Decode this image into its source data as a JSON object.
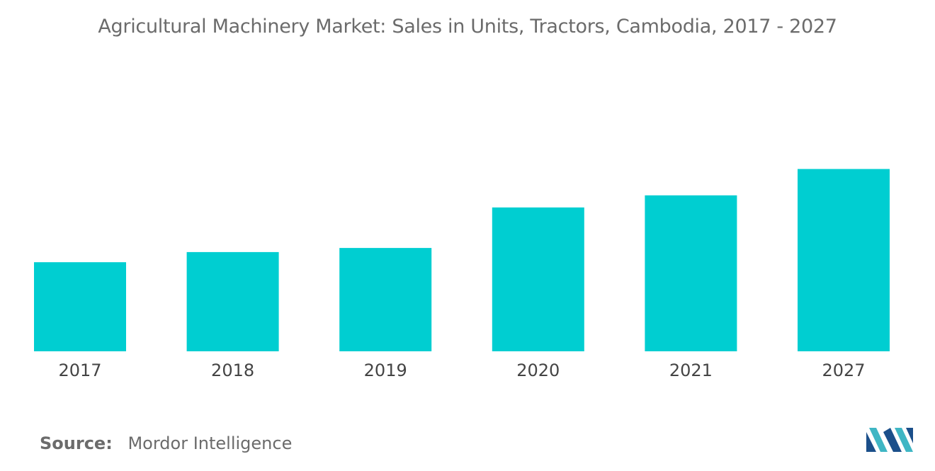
{
  "chart_data": {
    "type": "bar",
    "title": "Agricultural Machinery Market: Sales in Units, Tractors, Cambodia, 2017 - 2027",
    "categories": [
      "2017",
      "2018",
      "2019",
      "2020",
      "2021",
      "2027"
    ],
    "values": [
      44,
      49,
      51,
      71,
      77,
      90
    ],
    "xlabel": "",
    "ylabel": "",
    "ylim": [
      0,
      100
    ],
    "grid": false,
    "legend": "none",
    "bar_color": "#00CED1"
  },
  "footer": {
    "source_label": "Source:",
    "source_value": "Mordor Intelligence"
  },
  "logo": {
    "icon": "mordor-intelligence-logo-icon",
    "colors": [
      "#1B4F8A",
      "#3FB6C4"
    ]
  }
}
